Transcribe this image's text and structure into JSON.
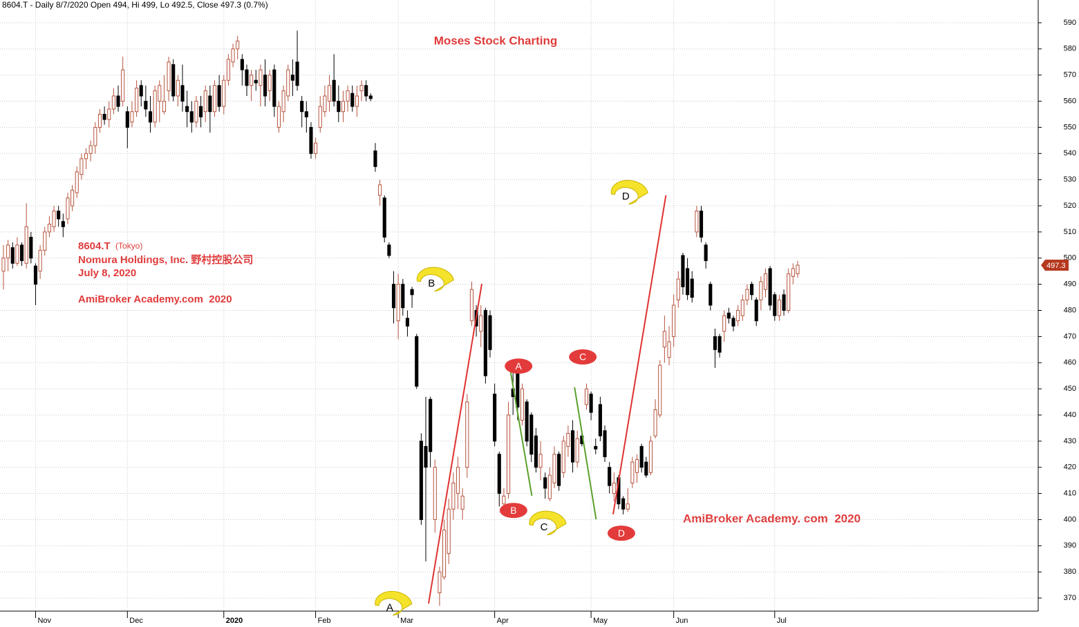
{
  "chart_data": {
    "type": "candlestick",
    "header": "8604.T - Daily 8/7/2020 Open 494, Hi 499, Lo 492.5, Close 497.3 (0.7%)",
    "title": "Moses Stock Charting",
    "info": {
      "ticker": "8604.T",
      "exchange": "(Tokyo)",
      "company": "Nomura Holdings, Inc. 野村控股公司",
      "date": "July 8, 2020",
      "credit": "AmiBroker Academy.com  2020"
    },
    "watermark": "AmiBroker Academy. com  2020",
    "up_color": "#b5533c",
    "down_color": "#000000",
    "last": 497.3,
    "last_color": "#b5391f",
    "ylim": [
      365,
      598.7
    ],
    "yticks": [
      370,
      380,
      390,
      400,
      410,
      420,
      430,
      440,
      450,
      460,
      470,
      480,
      490,
      500,
      510,
      520,
      530,
      540,
      550,
      560,
      570,
      580,
      590
    ],
    "xlim": [
      -0.75,
      225.4
    ],
    "xticks": [
      {
        "value": 7,
        "label": "Nov"
      },
      {
        "value": 27,
        "label": "Dec"
      },
      {
        "value": 48,
        "label": "2020"
      },
      {
        "value": 68,
        "label": "Feb"
      },
      {
        "value": 86,
        "label": "Mar"
      },
      {
        "value": 107,
        "label": "Apr"
      },
      {
        "value": 128,
        "label": "May"
      },
      {
        "value": 146,
        "label": "Jun"
      },
      {
        "value": 168,
        "label": "Jul"
      }
    ],
    "grid": true,
    "candles": [
      [
        495,
        505,
        488,
        500
      ],
      [
        500,
        507,
        495,
        505
      ],
      [
        504,
        506,
        496,
        498
      ],
      [
        498,
        508,
        497,
        505
      ],
      [
        505,
        506,
        497,
        499
      ],
      [
        498,
        521,
        496,
        512
      ],
      [
        508,
        510,
        498,
        500
      ],
      [
        497,
        498,
        482,
        490
      ],
      [
        495,
        505,
        492,
        503
      ],
      [
        503,
        512,
        501,
        510
      ],
      [
        510,
        516,
        508,
        513
      ],
      [
        512,
        520,
        510,
        518
      ],
      [
        518,
        520,
        512,
        515
      ],
      [
        514,
        517,
        508,
        512
      ],
      [
        515,
        525,
        513,
        523
      ],
      [
        520,
        528,
        518,
        526
      ],
      [
        525,
        535,
        523,
        533
      ],
      [
        532,
        540,
        530,
        538
      ],
      [
        538,
        542,
        534,
        540
      ],
      [
        540,
        545,
        537,
        543
      ],
      [
        543,
        552,
        540,
        550
      ],
      [
        550,
        557,
        548,
        555
      ],
      [
        555,
        558,
        551,
        553
      ],
      [
        553,
        560,
        550,
        557
      ],
      [
        557,
        565,
        555,
        562
      ],
      [
        562,
        566,
        556,
        558
      ],
      [
        560,
        577,
        558,
        572
      ],
      [
        556,
        558,
        542,
        550
      ],
      [
        552,
        560,
        550,
        556
      ],
      [
        556,
        568,
        554,
        565
      ],
      [
        566,
        568,
        558,
        562
      ],
      [
        560,
        566,
        554,
        557
      ],
      [
        556,
        562,
        548,
        552
      ],
      [
        552,
        566,
        550,
        564
      ],
      [
        560,
        568,
        552,
        566
      ],
      [
        556,
        570,
        555,
        560
      ],
      [
        564,
        577,
        560,
        575
      ],
      [
        574,
        576,
        560,
        562
      ],
      [
        562,
        570,
        558,
        568
      ],
      [
        566,
        574,
        556,
        560
      ],
      [
        558,
        564,
        550,
        556
      ],
      [
        556,
        560,
        548,
        552
      ],
      [
        552,
        562,
        550,
        560
      ],
      [
        558,
        562,
        550,
        554
      ],
      [
        556,
        566,
        552,
        564
      ],
      [
        562,
        566,
        548,
        556
      ],
      [
        556,
        568,
        554,
        566
      ],
      [
        566,
        570,
        556,
        558
      ],
      [
        558,
        570,
        555,
        568
      ],
      [
        568,
        578,
        566,
        576
      ],
      [
        575,
        582,
        573,
        580
      ],
      [
        580,
        585,
        576,
        583
      ],
      [
        576,
        578,
        566,
        572
      ],
      [
        572,
        574,
        562,
        566
      ],
      [
        566,
        572,
        560,
        570
      ],
      [
        568,
        572,
        564,
        567
      ],
      [
        566,
        574,
        558,
        572
      ],
      [
        570,
        576,
        558,
        562
      ],
      [
        564,
        572,
        560,
        570
      ],
      [
        572,
        574,
        554,
        558
      ],
      [
        550,
        560,
        548,
        558
      ],
      [
        556,
        566,
        552,
        564
      ],
      [
        562,
        574,
        560,
        572
      ],
      [
        570,
        576,
        562,
        568
      ],
      [
        575,
        587,
        564,
        566
      ],
      [
        560,
        562,
        550,
        556
      ],
      [
        556,
        560,
        548,
        554
      ],
      [
        550,
        552,
        538,
        540
      ],
      [
        540,
        546,
        538,
        544
      ],
      [
        550,
        562,
        548,
        558
      ],
      [
        556,
        566,
        554,
        562
      ],
      [
        560,
        570,
        556,
        566
      ],
      [
        568,
        578,
        558,
        560
      ],
      [
        560,
        566,
        552,
        556
      ],
      [
        556,
        564,
        552,
        560
      ],
      [
        560,
        566,
        556,
        564
      ],
      [
        563,
        566,
        556,
        558
      ],
      [
        558,
        566,
        554,
        562
      ],
      [
        564,
        568,
        560,
        566
      ],
      [
        566,
        568,
        560,
        562
      ],
      [
        562,
        563,
        560,
        561
      ],
      [
        541,
        544,
        533,
        535
      ],
      [
        524,
        530,
        520,
        528
      ],
      [
        523,
        524,
        506,
        508
      ],
      [
        505,
        506,
        500,
        501
      ],
      [
        490,
        495,
        475,
        481
      ],
      [
        476,
        494,
        469,
        490
      ],
      [
        490,
        492,
        478,
        481
      ],
      [
        477,
        480,
        470,
        474
      ],
      [
        488,
        489,
        481,
        486
      ],
      [
        470,
        471,
        450,
        451
      ],
      [
        430,
        433,
        398,
        400
      ],
      [
        428,
        447,
        384,
        420
      ],
      [
        446,
        447,
        420,
        426
      ],
      [
        400,
        423,
        395,
        420
      ],
      [
        372,
        382,
        367,
        380
      ],
      [
        378,
        400,
        377,
        396
      ],
      [
        387,
        408,
        383,
        404
      ],
      [
        404,
        418,
        400,
        414
      ],
      [
        410,
        424,
        404,
        420
      ],
      [
        404,
        412,
        400,
        409
      ],
      [
        420,
        448,
        416,
        445
      ],
      [
        476,
        491,
        474,
        488
      ],
      [
        480,
        482,
        470,
        474
      ],
      [
        472,
        482,
        466,
        478
      ],
      [
        480,
        481,
        452,
        455
      ],
      [
        478,
        480,
        462,
        465
      ],
      [
        448,
        452,
        428,
        430
      ],
      [
        425,
        426,
        405,
        410
      ],
      [
        406,
        412,
        405,
        409
      ],
      [
        410,
        445,
        408,
        440
      ],
      [
        450,
        456,
        440,
        447
      ],
      [
        457,
        458,
        438,
        443
      ],
      [
        438,
        452,
        436,
        450
      ],
      [
        445,
        446,
        428,
        430
      ],
      [
        440,
        441,
        422,
        425
      ],
      [
        432,
        435,
        418,
        420
      ],
      [
        420,
        430,
        415,
        425
      ],
      [
        416,
        418,
        408,
        412
      ],
      [
        408,
        420,
        407,
        417
      ],
      [
        414,
        428,
        412,
        425
      ],
      [
        425,
        426,
        411,
        413
      ],
      [
        418,
        432,
        416,
        430
      ],
      [
        428,
        436,
        424,
        433
      ],
      [
        434,
        438,
        418,
        422
      ],
      [
        422,
        434,
        420,
        431
      ],
      [
        432,
        434,
        428,
        429
      ],
      [
        444,
        452,
        442,
        450
      ],
      [
        448,
        449,
        438,
        441
      ],
      [
        428,
        431,
        425,
        427
      ],
      [
        444,
        447,
        430,
        432
      ],
      [
        434,
        436,
        422,
        424
      ],
      [
        420,
        422,
        410,
        413
      ],
      [
        410,
        418,
        407,
        414
      ],
      [
        416,
        417,
        404,
        406
      ],
      [
        408,
        409,
        402,
        404
      ],
      [
        404,
        412,
        403,
        406
      ],
      [
        414,
        424,
        412,
        422
      ],
      [
        418,
        425,
        414,
        423
      ],
      [
        428,
        429,
        418,
        420
      ],
      [
        422,
        424,
        416,
        417
      ],
      [
        418,
        432,
        417,
        430
      ],
      [
        432,
        446,
        431,
        442
      ],
      [
        440,
        461,
        439,
        459
      ],
      [
        466,
        478,
        460,
        472
      ],
      [
        462,
        474,
        459,
        468
      ],
      [
        470,
        486,
        466,
        482
      ],
      [
        484,
        495,
        481,
        492
      ],
      [
        501,
        502,
        486,
        489
      ],
      [
        496,
        500,
        484,
        486
      ],
      [
        492,
        495,
        483,
        485
      ],
      [
        510,
        520,
        508,
        518
      ],
      [
        518,
        520,
        506,
        508
      ],
      [
        505,
        506,
        496,
        499
      ],
      [
        490,
        491,
        480,
        482
      ],
      [
        470,
        473,
        458,
        465
      ],
      [
        470,
        471,
        462,
        464
      ],
      [
        472,
        480,
        468,
        478
      ],
      [
        479,
        481,
        475,
        477
      ],
      [
        477,
        478,
        472,
        474
      ],
      [
        476,
        482,
        474,
        480
      ],
      [
        478,
        486,
        476,
        484
      ],
      [
        484,
        490,
        482,
        488
      ],
      [
        490,
        491,
        484,
        486
      ],
      [
        484,
        485,
        474,
        476
      ],
      [
        484,
        493,
        480,
        491
      ],
      [
        488,
        496,
        485,
        494
      ],
      [
        496,
        497,
        480,
        482
      ],
      [
        486,
        487,
        476,
        478
      ],
      [
        478,
        486,
        476,
        484
      ],
      [
        486,
        488,
        478,
        480
      ],
      [
        480,
        496,
        479,
        494
      ],
      [
        493,
        498,
        490,
        496
      ],
      [
        494,
        499,
        492.5,
        497.3
      ]
    ],
    "trendlines": [
      {
        "color": "#e03030",
        "from": [
          92.6,
          367.9
        ],
        "to": [
          104.2,
          490.2
        ]
      },
      {
        "color": "#5aa02c",
        "from": [
          110.2,
          459.3
        ],
        "to": [
          115.1,
          409.1
        ]
      },
      {
        "color": "#5aa02c",
        "from": [
          124.4,
          450.6
        ],
        "to": [
          129.1,
          400.1
        ]
      },
      {
        "color": "#e03030",
        "from": [
          132.8,
          402
        ],
        "to": [
          144.3,
          524
        ]
      }
    ],
    "markers": [
      {
        "label": "A",
        "style": "pointer",
        "at": [
          84.3,
          366.5
        ]
      },
      {
        "label": "B",
        "style": "pointer",
        "at": [
          93.4,
          490.4
        ]
      },
      {
        "label": "C",
        "style": "pointer",
        "at": [
          117.9,
          397.2
        ]
      },
      {
        "label": "D",
        "style": "pointer",
        "at": [
          135.7,
          523.7
        ]
      },
      {
        "label": "A",
        "style": "oval",
        "at": [
          112.2,
          458.7
        ]
      },
      {
        "label": "B",
        "style": "oval",
        "at": [
          111.1,
          403.5
        ]
      },
      {
        "label": "C",
        "style": "oval",
        "at": [
          126.2,
          462.2
        ]
      },
      {
        "label": "D",
        "style": "oval",
        "at": [
          134.6,
          394.8
        ]
      }
    ]
  }
}
